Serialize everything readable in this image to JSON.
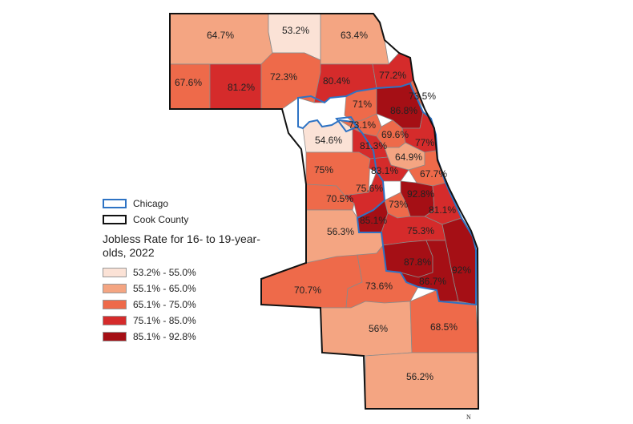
{
  "map": {
    "layer_chicago": "Chicago",
    "layer_cook": "Cook County",
    "legend_title": "Jobless Rate for 16- to 19-year-olds, 2022",
    "north_label": "N",
    "classes": [
      {
        "label": "53.2% - 55.0%",
        "color": "#fbe2d6"
      },
      {
        "label": "55.1% - 65.0%",
        "color": "#f4a582"
      },
      {
        "label": "65.1% - 75.0%",
        "color": "#ee6a4a"
      },
      {
        "label": "75.1% - 85.0%",
        "color": "#d52b2b"
      },
      {
        "label": "85.1% - 92.8%",
        "color": "#a50f15"
      }
    ],
    "chicago_outline_color": "#2e73c4",
    "county_outline_color": "#111111",
    "regions": [
      {
        "label": "64.7%",
        "class": 1
      },
      {
        "label": "53.2%",
        "class": 0
      },
      {
        "label": "63.4%",
        "class": 1
      },
      {
        "label": "67.6%",
        "class": 2
      },
      {
        "label": "81.2%",
        "class": 3
      },
      {
        "label": "72.3%",
        "class": 2
      },
      {
        "label": "80.4%",
        "class": 3
      },
      {
        "label": "77.2%",
        "class": 3
      },
      {
        "label": "73.5%",
        "class": 2
      },
      {
        "label": "71%",
        "class": 2
      },
      {
        "label": "86.8%",
        "class": 4
      },
      {
        "label": "73.1%",
        "class": 2
      },
      {
        "label": "54.6%",
        "class": 0
      },
      {
        "label": "69.6%",
        "class": 2
      },
      {
        "label": "77%",
        "class": 3
      },
      {
        "label": "81.3%",
        "class": 3
      },
      {
        "label": "64.9%",
        "class": 1
      },
      {
        "label": "67.7%",
        "class": 2
      },
      {
        "label": "75%",
        "class": 2
      },
      {
        "label": "83.1%",
        "class": 3
      },
      {
        "label": "70.5%",
        "class": 2
      },
      {
        "label": "75.6%",
        "class": 3
      },
      {
        "label": "92.8%",
        "class": 4
      },
      {
        "label": "73%",
        "class": 2
      },
      {
        "label": "81.1%",
        "class": 3
      },
      {
        "label": "85.1%",
        "class": 4
      },
      {
        "label": "56.3%",
        "class": 1
      },
      {
        "label": "75.3%",
        "class": 3
      },
      {
        "label": "87.8%",
        "class": 4
      },
      {
        "label": "92%",
        "class": 4
      },
      {
        "label": "86.7%",
        "class": 4
      },
      {
        "label": "70.7%",
        "class": 2
      },
      {
        "label": "73.6%",
        "class": 2
      },
      {
        "label": "56%",
        "class": 1
      },
      {
        "label": "68.5%",
        "class": 2
      },
      {
        "label": "56.2%",
        "class": 1
      }
    ]
  }
}
